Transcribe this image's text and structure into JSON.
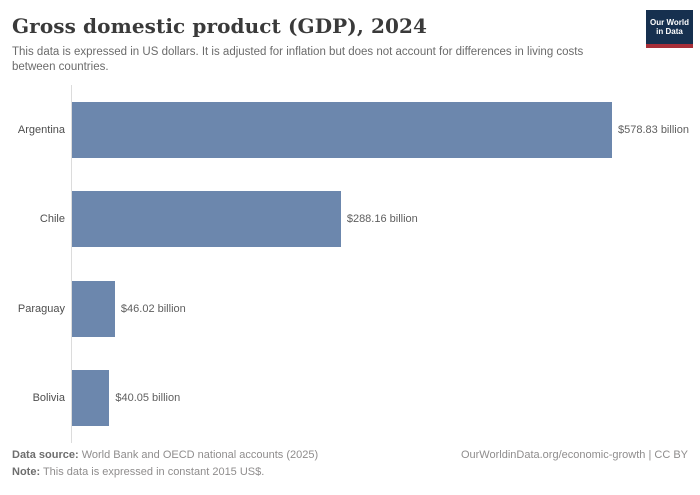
{
  "header": {
    "title": "Gross domestic product (GDP), 2024",
    "subtitle": "This data is expressed in US dollars. It is adjusted for inflation but does not account for differences in living costs between countries.",
    "logo": {
      "line1": "Our World",
      "line2": "in Data"
    }
  },
  "chart_data": {
    "type": "bar",
    "orientation": "horizontal",
    "title": "Gross domestic product (GDP), 2024",
    "categories": [
      "Argentina",
      "Chile",
      "Paraguay",
      "Bolivia"
    ],
    "values": [
      578.83,
      288.16,
      46.02,
      40.05
    ],
    "value_labels": [
      "$578.83 billion",
      "$288.16 billion",
      "$46.02 billion",
      "$40.05 billion"
    ],
    "unit": "billion US$ (constant 2015)",
    "xlabel": "",
    "ylabel": "",
    "xlim": [
      0,
      578.83
    ],
    "grid": false,
    "legend": "none",
    "bar_color": "#6c87ad"
  },
  "footer": {
    "source_label": "Data source:",
    "source_text": " World Bank and OECD national accounts (2025)",
    "note_label": "Note:",
    "note_text": " This data is expressed in constant 2015 US$.",
    "link": "OurWorldinData.org/economic-growth",
    "separator": " | ",
    "license": "CC BY"
  },
  "colors": {
    "bar": "#6c87ad",
    "axis_line": "#dcdcdc",
    "logo_background": "#16304f",
    "logo_stripe": "#a72e38",
    "title_text": "#3a3a3a",
    "subtitle_text": "#6b6b6b",
    "footer_text": "#8f8d8d"
  }
}
